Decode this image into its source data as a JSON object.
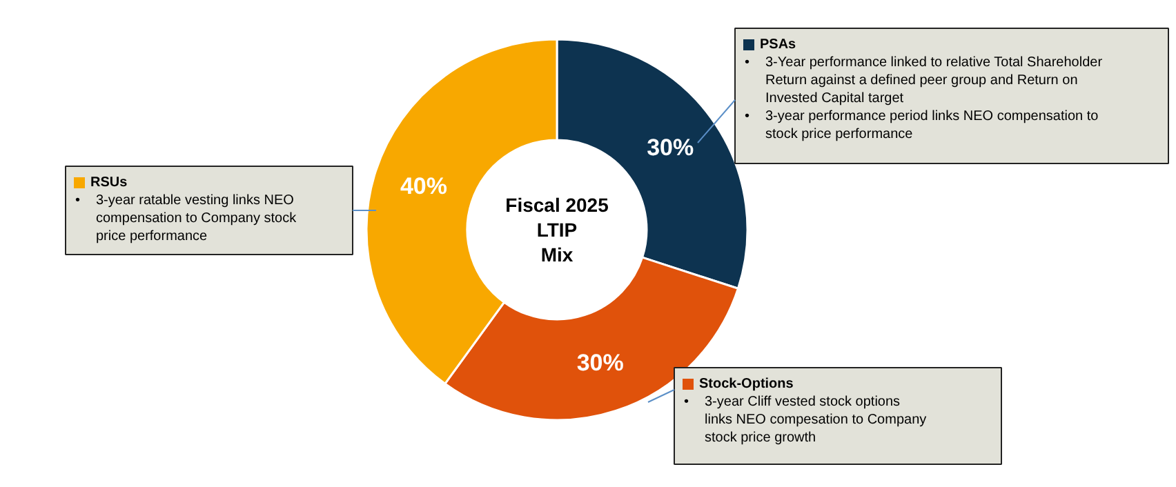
{
  "chart_data": {
    "type": "donut",
    "title": "Fiscal 2025\nLTIP\nMix",
    "categories": [
      "PSAs",
      "Stock-Options",
      "RSUs"
    ],
    "values": [
      30,
      30,
      40
    ],
    "colors": [
      "#0d3350",
      "#e0520b",
      "#f8a800"
    ],
    "value_labels": [
      "30%",
      "30%",
      "40%"
    ],
    "legend": "left",
    "annotations": [
      "• 3-Year performance linked to relative Total Shareholder\nReturn against a defined peer group and Return on\nInvested Capital target\n• 3-year performance period links NEO compensation to\nstock price performance",
      "• 3-year Cliff vested stock options\nlinks NEO compesation to Company\nstock price growth",
      "• 3-year ratable vesting links NEO\ncompensation to Company stock\nprice performance"
    ]
  }
}
